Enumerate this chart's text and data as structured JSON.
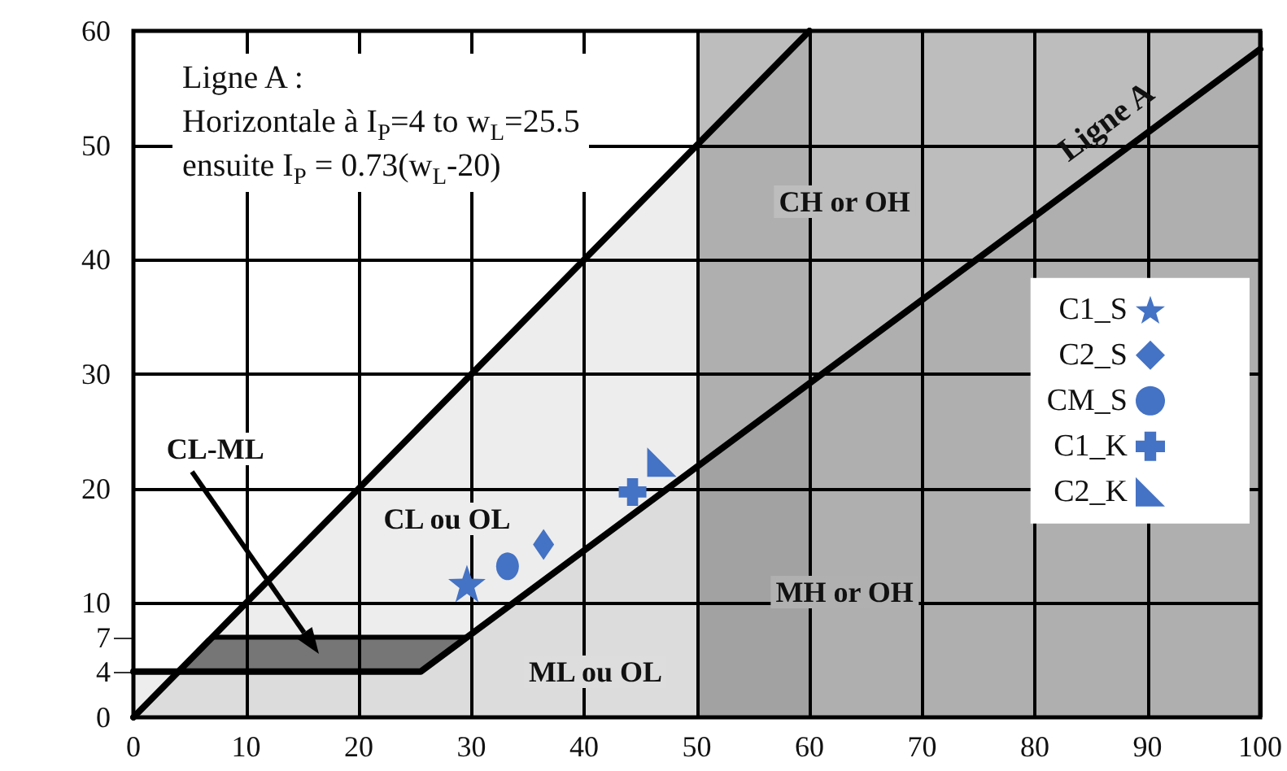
{
  "chart_data": {
    "type": "scatter",
    "xlim": [
      0,
      100
    ],
    "xticks": [
      0,
      10,
      20,
      30,
      40,
      50,
      60,
      70,
      80,
      90,
      100
    ],
    "ylim": [
      0,
      60
    ],
    "yticks": [
      0,
      4,
      7,
      10,
      20,
      30,
      40,
      50,
      60
    ],
    "grid": true,
    "legend": "right",
    "series": [
      {
        "type": "area",
        "color": "#000000",
        "x": [
          0,
          60
        ],
        "values": [
          0,
          60
        ]
      },
      {
        "name": "Ligne A",
        "type": "area",
        "color": "#000000",
        "x": [
          0,
          25.5,
          100
        ],
        "values": [
          4,
          4,
          58.4
        ]
      },
      {
        "name": "CL-ML",
        "type": "line",
        "color": "#000000",
        "x": [
          4,
          7,
          25.5,
          29.6
        ],
        "values": [
          4,
          7,
          7,
          7
        ],
        "lower": [
          4,
          4,
          4,
          7
        ],
        "upper": [
          4,
          7,
          7,
          7
        ]
      },
      {
        "name": "C1_S",
        "color": "#4472c4",
        "marker": "star",
        "x": [
          29.6
        ],
        "values": [
          11.7
        ]
      },
      {
        "name": "C2_S",
        "color": "#4472c4",
        "marker": "diamond",
        "x": [
          36.4
        ],
        "values": [
          15.1
        ]
      },
      {
        "name": "CM_S",
        "color": "#4472c4",
        "marker": "circle",
        "x": [
          33.2
        ],
        "values": [
          13.2
        ]
      },
      {
        "name": "C1_K",
        "color": "#4472c4",
        "marker": "cross",
        "x": [
          44.3
        ],
        "values": [
          19.7
        ]
      },
      {
        "name": "C2_K",
        "color": "#4472c4",
        "marker": "triangle",
        "x": [
          46.9
        ],
        "values": [
          22.3
        ]
      }
    ],
    "bands": [
      {
        "axis": "x",
        "from": 50,
        "to": 100,
        "color": "#bdbdbd"
      }
    ],
    "annotations": [
      "Ligne A :\nHorizontale à I$_{P}$=4 to w$_{L}$=25.5\nensuite I$_{P}$ = 0.73(w$_{L}$-20)",
      "CL ou OL",
      "CH or OH",
      "MH or OH",
      "ML ou OL"
    ]
  }
}
